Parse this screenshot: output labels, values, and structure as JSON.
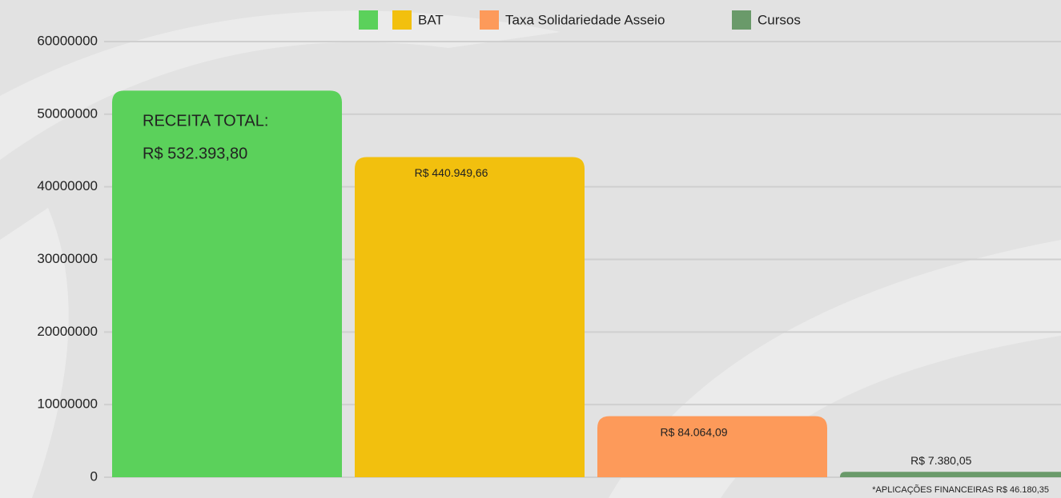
{
  "chart_data": {
    "type": "bar",
    "series": [
      {
        "name": null,
        "color": "#5bd15b",
        "values": [
          53239380
        ],
        "value_labels": [
          "R$ 532.393,80"
        ]
      },
      {
        "name": "BAT",
        "color": "#f2c00e",
        "values": [
          44094966
        ],
        "value_labels": [
          "R$ 440.949,66"
        ]
      },
      {
        "name": "Taxa Solidariedade Asseio",
        "color": "#fd9a5a",
        "values": [
          8406409
        ],
        "value_labels": [
          "R$ 84.064,09"
        ]
      },
      {
        "name": "Cursos",
        "color": "#6a9a6a",
        "values": [
          738005
        ],
        "value_labels": [
          "R$ 7.380,05"
        ]
      }
    ],
    "annotations": [
      "RECEITA TOTAL:",
      "*APLICAÇÕES FINANCEIRAS R$ 46.180,35"
    ],
    "ylim": [
      0,
      60000000
    ],
    "yticks": [
      0,
      10000000,
      20000000,
      30000000,
      40000000,
      50000000,
      60000000
    ],
    "grid": true,
    "legend": "top"
  }
}
